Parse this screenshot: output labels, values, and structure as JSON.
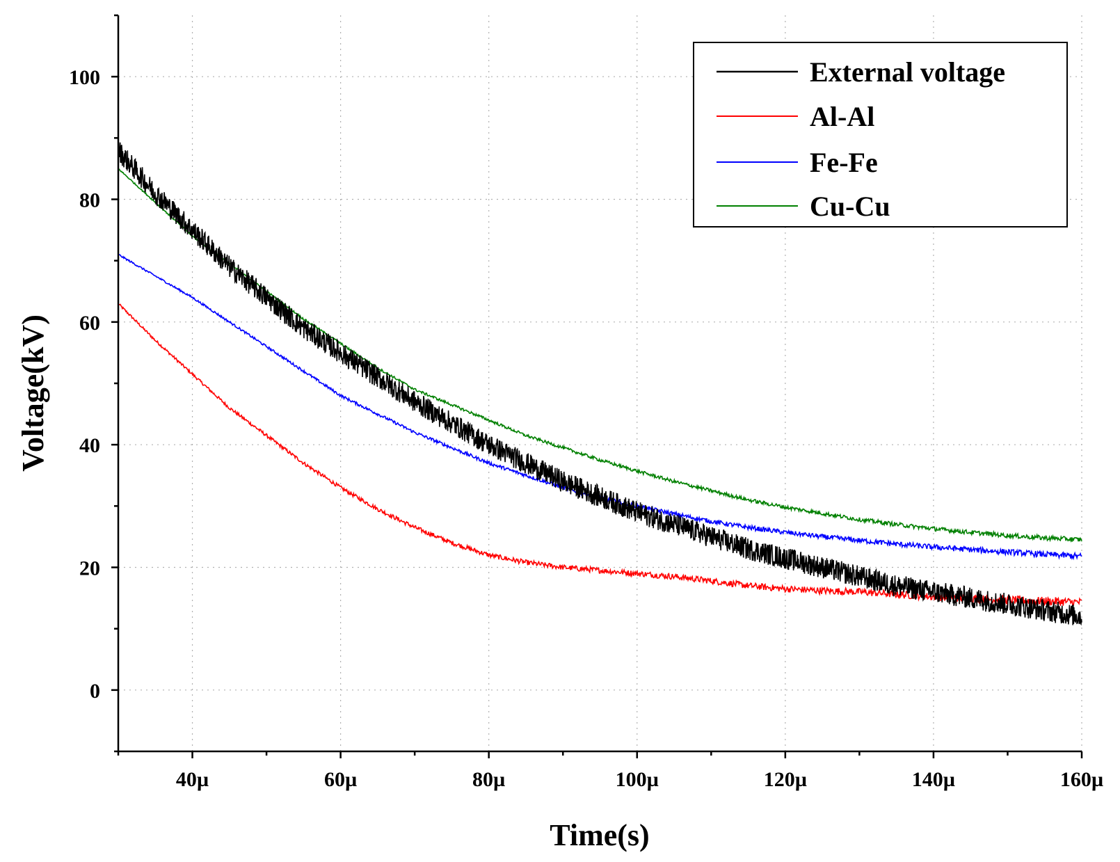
{
  "chart_data": {
    "type": "line",
    "title": "",
    "xlabel": "Time(s)",
    "ylabel": "Voltage(kV)",
    "xlim": [
      30,
      160
    ],
    "ylim": [
      -10,
      110
    ],
    "x_unit_scale": "µs",
    "x_ticks": [
      40,
      60,
      80,
      100,
      120,
      140,
      160
    ],
    "x_tick_labels": [
      "40µ",
      "60µ",
      "80µ",
      "100µ",
      "120µ",
      "140µ",
      "160µ"
    ],
    "y_ticks": [
      0,
      20,
      40,
      60,
      80,
      100
    ],
    "y_tick_labels": [
      "0",
      "20",
      "40",
      "60",
      "80",
      "100"
    ],
    "grid": true,
    "legend_position": "top-right",
    "series": [
      {
        "name": "External voltage",
        "color": "#000000",
        "noise": 1.8,
        "x": [
          30,
          35,
          40,
          45,
          50,
          55,
          60,
          65,
          70,
          75,
          80,
          85,
          90,
          95,
          100,
          105,
          110,
          115,
          120,
          125,
          130,
          135,
          140,
          145,
          150,
          155,
          160
        ],
        "values": [
          88,
          81,
          75,
          69,
          64,
          59,
          55,
          51,
          47,
          43.5,
          40,
          37,
          34,
          31.5,
          29,
          27,
          25,
          23,
          21.5,
          20,
          18.5,
          17,
          16,
          15,
          14,
          13,
          12
        ]
      },
      {
        "name": "Al-Al",
        "color": "#ff0000",
        "noise": 0.7,
        "x": [
          30,
          35,
          40,
          45,
          50,
          55,
          60,
          65,
          70,
          75,
          80,
          85,
          90,
          95,
          100,
          105,
          110,
          115,
          120,
          125,
          130,
          135,
          140,
          145,
          150,
          155,
          160
        ],
        "values": [
          63,
          57,
          51.5,
          46,
          41.5,
          37,
          33,
          29.5,
          26.5,
          24,
          22,
          20.8,
          20,
          19.5,
          19,
          18.5,
          17.8,
          17,
          16.5,
          16.2,
          16,
          15.6,
          15.2,
          14.9,
          14.7,
          14.5,
          14.3
        ]
      },
      {
        "name": "Fe-Fe",
        "color": "#0000ff",
        "noise": 0.5,
        "x": [
          30,
          35,
          40,
          45,
          50,
          55,
          60,
          65,
          70,
          75,
          80,
          85,
          90,
          95,
          100,
          105,
          110,
          115,
          120,
          125,
          130,
          135,
          140,
          145,
          150,
          155,
          160
        ],
        "values": [
          71,
          67.5,
          64,
          60,
          56,
          52,
          48,
          45,
          42,
          39.5,
          37,
          35,
          33,
          31.3,
          30,
          28.7,
          27.5,
          26.5,
          25.7,
          25,
          24.4,
          23.8,
          23.3,
          22.9,
          22.5,
          22.1,
          21.8
        ]
      },
      {
        "name": "Cu-Cu",
        "color": "#008000",
        "noise": 0.4,
        "x": [
          30,
          35,
          40,
          45,
          50,
          55,
          60,
          65,
          70,
          75,
          80,
          85,
          90,
          95,
          100,
          105,
          110,
          115,
          120,
          125,
          130,
          135,
          140,
          145,
          150,
          155,
          160
        ],
        "values": [
          85,
          79.5,
          74,
          69.5,
          65,
          60.5,
          56.5,
          52.5,
          49,
          46.5,
          44,
          41.5,
          39.5,
          37.5,
          35.7,
          34,
          32.5,
          31,
          29.8,
          28.8,
          27.8,
          27,
          26.3,
          25.7,
          25.2,
          24.8,
          24.5
        ]
      }
    ]
  }
}
